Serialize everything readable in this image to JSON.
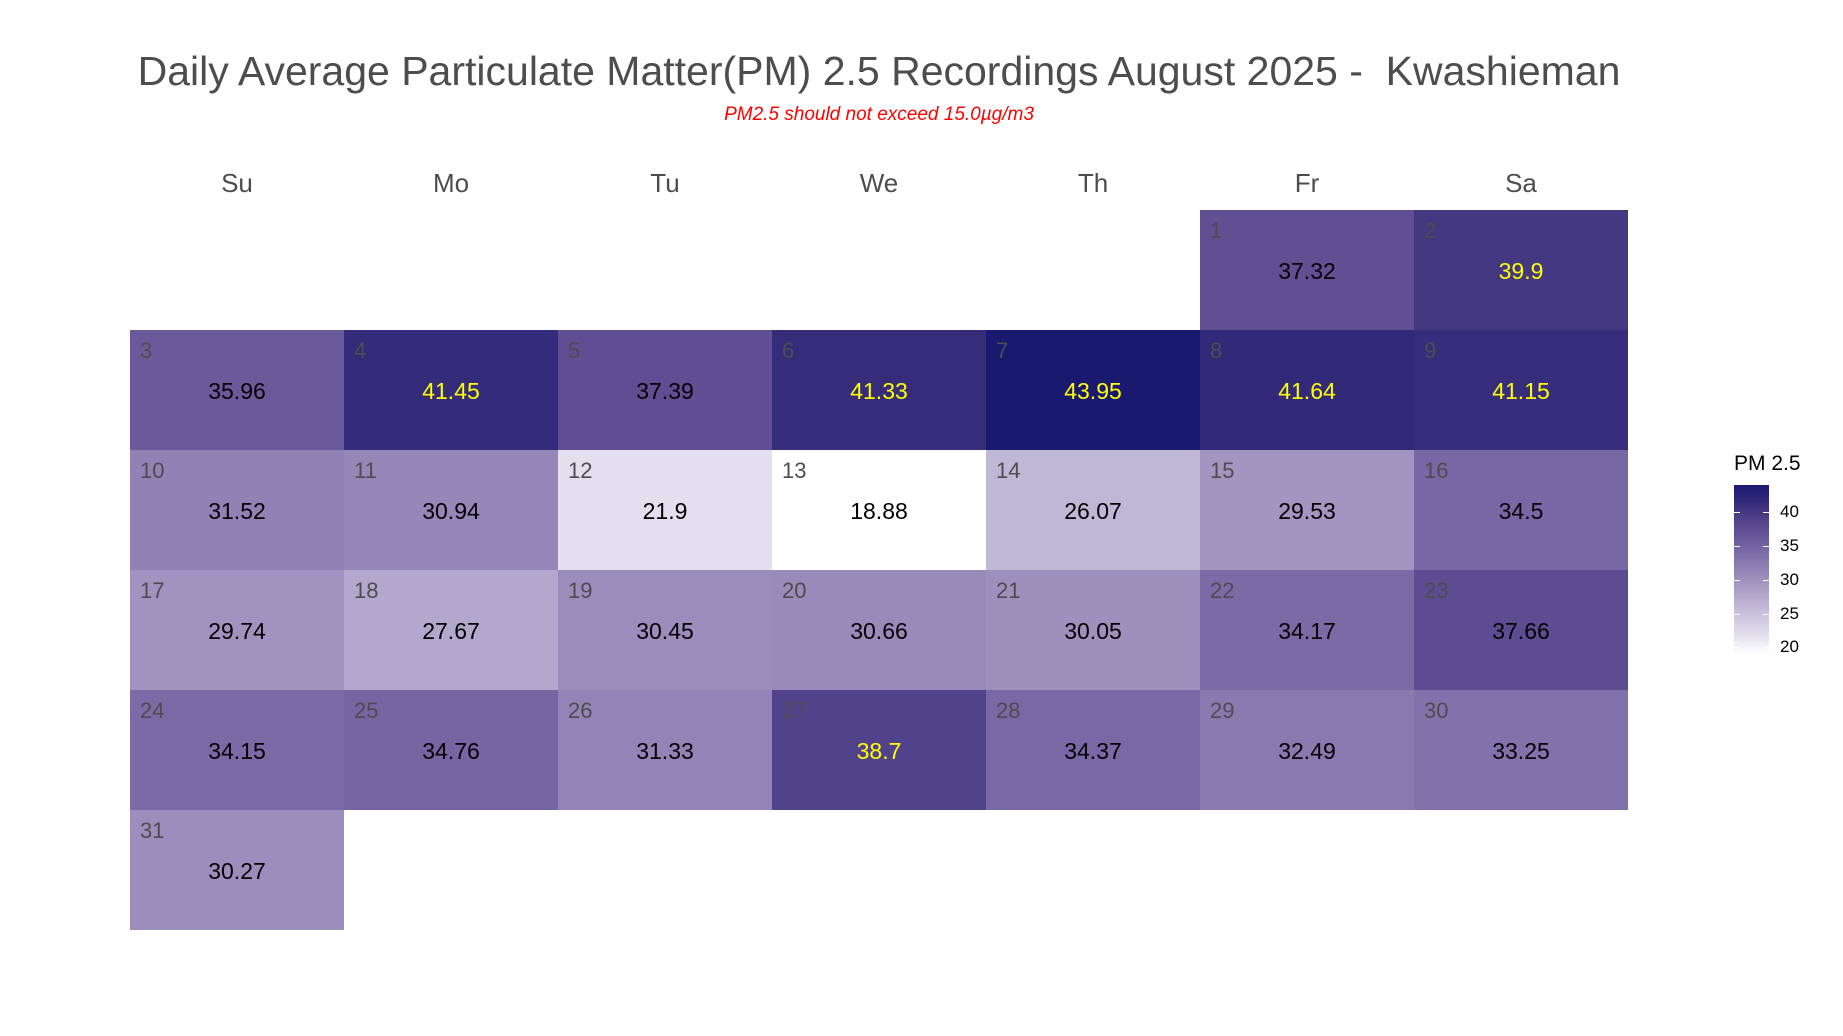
{
  "chart_data": {
    "type": "heatmap",
    "subtype": "calendar",
    "title": "Daily Average Particulate Matter(PM) 2.5 Recordings August 2025 -  Kwashieman",
    "subtitle": "PM2.5 should not exceed 15.0µg/m3",
    "month": "August",
    "year": 2025,
    "weekdays": [
      "Su",
      "Mo",
      "Tu",
      "We",
      "Th",
      "Fr",
      "Sa"
    ],
    "first_weekday_index": 5,
    "days": [
      {
        "day": 1,
        "value": 37.32
      },
      {
        "day": 2,
        "value": 39.9
      },
      {
        "day": 3,
        "value": 35.96
      },
      {
        "day": 4,
        "value": 41.45
      },
      {
        "day": 5,
        "value": 37.39
      },
      {
        "day": 6,
        "value": 41.33
      },
      {
        "day": 7,
        "value": 43.95
      },
      {
        "day": 8,
        "value": 41.64
      },
      {
        "day": 9,
        "value": 41.15
      },
      {
        "day": 10,
        "value": 31.52
      },
      {
        "day": 11,
        "value": 30.94
      },
      {
        "day": 12,
        "value": 21.9
      },
      {
        "day": 13,
        "value": 18.88
      },
      {
        "day": 14,
        "value": 26.07
      },
      {
        "day": 15,
        "value": 29.53
      },
      {
        "day": 16,
        "value": 34.5
      },
      {
        "day": 17,
        "value": 29.74
      },
      {
        "day": 18,
        "value": 27.67
      },
      {
        "day": 19,
        "value": 30.45
      },
      {
        "day": 20,
        "value": 30.66
      },
      {
        "day": 21,
        "value": 30.05
      },
      {
        "day": 22,
        "value": 34.17
      },
      {
        "day": 23,
        "value": 37.66
      },
      {
        "day": 24,
        "value": 34.15
      },
      {
        "day": 25,
        "value": 34.76
      },
      {
        "day": 26,
        "value": 31.33
      },
      {
        "day": 27,
        "value": 38.7
      },
      {
        "day": 28,
        "value": 34.37
      },
      {
        "day": 29,
        "value": 32.49
      },
      {
        "day": 30,
        "value": 33.25
      },
      {
        "day": 31,
        "value": 30.27
      }
    ],
    "highlight_threshold": 38.5,
    "highlight_text_color": "#ffff00",
    "normal_text_color": "#000000",
    "legend": {
      "title": "PM 2.5",
      "position": "right",
      "ticks": [
        20,
        25,
        30,
        35,
        40
      ],
      "range": [
        18.88,
        43.95
      ]
    },
    "color_scale": {
      "low": "#ffffff",
      "high": "#191970",
      "stops": [
        {
          "value": 18.88,
          "color": "#ffffff"
        },
        {
          "value": 22.0,
          "color": "#e2deed"
        },
        {
          "value": 26.0,
          "color": "#c0b8d6"
        },
        {
          "value": 30.0,
          "color": "#9e90bd"
        },
        {
          "value": 34.0,
          "color": "#7b6ba7"
        },
        {
          "value": 37.4,
          "color": "#5f4e93"
        },
        {
          "value": 41.4,
          "color": "#352b7a"
        },
        {
          "value": 43.95,
          "color": "#191970"
        }
      ]
    }
  }
}
